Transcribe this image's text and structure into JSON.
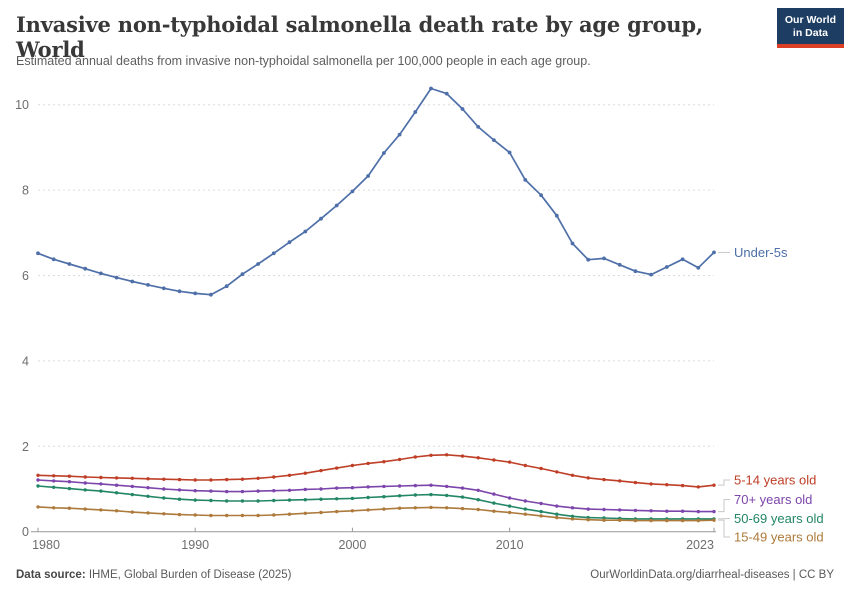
{
  "header": {
    "title": "Invasive non-typhoidal salmonella death rate by age group, World",
    "subtitle": "Estimated annual deaths from invasive non-typhoidal salmonella per 100,000 people in each age group.",
    "logo_line1": "Our World",
    "logo_line2": "in Data",
    "logo_bg_color": "#1d3d63",
    "logo_accent_color": "#dc3e26"
  },
  "chart_data": {
    "type": "line",
    "title": "Invasive non-typhoidal salmonella death rate by age group, World",
    "xlabel": "",
    "ylabel": "",
    "xlim": [
      1980,
      2023
    ],
    "ylim": [
      0,
      10.5
    ],
    "xticks": [
      1980,
      1990,
      2000,
      2010,
      2023
    ],
    "yticks": [
      0,
      2,
      4,
      6,
      8,
      10
    ],
    "grid": "horizontal-dashed",
    "legend_position": "right-end-labels",
    "years": [
      1980,
      1981,
      1982,
      1983,
      1984,
      1985,
      1986,
      1987,
      1988,
      1989,
      1990,
      1991,
      1992,
      1993,
      1994,
      1995,
      1996,
      1997,
      1998,
      1999,
      2000,
      2001,
      2002,
      2003,
      2004,
      2005,
      2006,
      2007,
      2008,
      2009,
      2010,
      2011,
      2012,
      2013,
      2014,
      2015,
      2016,
      2017,
      2018,
      2019,
      2020,
      2021,
      2022,
      2023
    ],
    "series": [
      {
        "name": "Under-5s",
        "color": "#4e6fa8",
        "values": [
          6.52,
          6.38,
          6.27,
          6.16,
          6.05,
          5.95,
          5.86,
          5.78,
          5.7,
          5.63,
          5.58,
          5.55,
          5.75,
          6.03,
          6.27,
          6.52,
          6.78,
          7.03,
          7.33,
          7.64,
          7.97,
          8.33,
          8.87,
          9.3,
          9.83,
          10.38,
          10.26,
          9.9,
          9.48,
          9.17,
          8.88,
          8.24,
          7.88,
          7.4,
          6.75,
          6.37,
          6.4,
          6.25,
          6.1,
          6.02,
          6.2,
          6.38,
          6.18,
          6.54
        ]
      },
      {
        "name": "5-14 years old",
        "color": "#be3e26",
        "values": [
          1.32,
          1.31,
          1.3,
          1.28,
          1.27,
          1.26,
          1.25,
          1.24,
          1.23,
          1.22,
          1.21,
          1.21,
          1.22,
          1.23,
          1.25,
          1.28,
          1.32,
          1.37,
          1.43,
          1.49,
          1.55,
          1.6,
          1.64,
          1.69,
          1.75,
          1.79,
          1.8,
          1.77,
          1.73,
          1.68,
          1.63,
          1.55,
          1.48,
          1.4,
          1.32,
          1.26,
          1.22,
          1.19,
          1.15,
          1.12,
          1.1,
          1.08,
          1.05,
          1.09
        ]
      },
      {
        "name": "70+ years old",
        "color": "#7c45ab",
        "values": [
          1.21,
          1.19,
          1.17,
          1.14,
          1.12,
          1.09,
          1.06,
          1.03,
          1.0,
          0.98,
          0.96,
          0.95,
          0.94,
          0.94,
          0.95,
          0.96,
          0.97,
          0.99,
          1.0,
          1.02,
          1.03,
          1.05,
          1.06,
          1.07,
          1.08,
          1.09,
          1.06,
          1.02,
          0.97,
          0.88,
          0.79,
          0.72,
          0.66,
          0.6,
          0.56,
          0.53,
          0.52,
          0.51,
          0.5,
          0.49,
          0.48,
          0.48,
          0.47,
          0.47
        ]
      },
      {
        "name": "50-69 years old",
        "color": "#238667",
        "values": [
          1.07,
          1.04,
          1.01,
          0.98,
          0.95,
          0.91,
          0.87,
          0.83,
          0.79,
          0.76,
          0.74,
          0.73,
          0.72,
          0.72,
          0.72,
          0.73,
          0.74,
          0.75,
          0.76,
          0.77,
          0.78,
          0.8,
          0.82,
          0.84,
          0.86,
          0.87,
          0.85,
          0.81,
          0.75,
          0.67,
          0.6,
          0.53,
          0.47,
          0.41,
          0.36,
          0.33,
          0.32,
          0.31,
          0.3,
          0.3,
          0.3,
          0.3,
          0.3,
          0.3
        ]
      },
      {
        "name": "15-49 years old",
        "color": "#ad7a3c",
        "values": [
          0.58,
          0.56,
          0.55,
          0.53,
          0.51,
          0.49,
          0.46,
          0.44,
          0.42,
          0.4,
          0.39,
          0.38,
          0.38,
          0.38,
          0.38,
          0.39,
          0.41,
          0.43,
          0.45,
          0.47,
          0.49,
          0.51,
          0.53,
          0.55,
          0.56,
          0.57,
          0.56,
          0.54,
          0.52,
          0.48,
          0.45,
          0.41,
          0.37,
          0.33,
          0.3,
          0.28,
          0.27,
          0.27,
          0.26,
          0.26,
          0.26,
          0.26,
          0.26,
          0.27
        ]
      }
    ]
  },
  "footer": {
    "source_label": "Data source:",
    "source_text": " IHME, Global Burden of Disease (2025)",
    "credit": "OurWorldinData.org/diarrheal-diseases | CC BY"
  }
}
